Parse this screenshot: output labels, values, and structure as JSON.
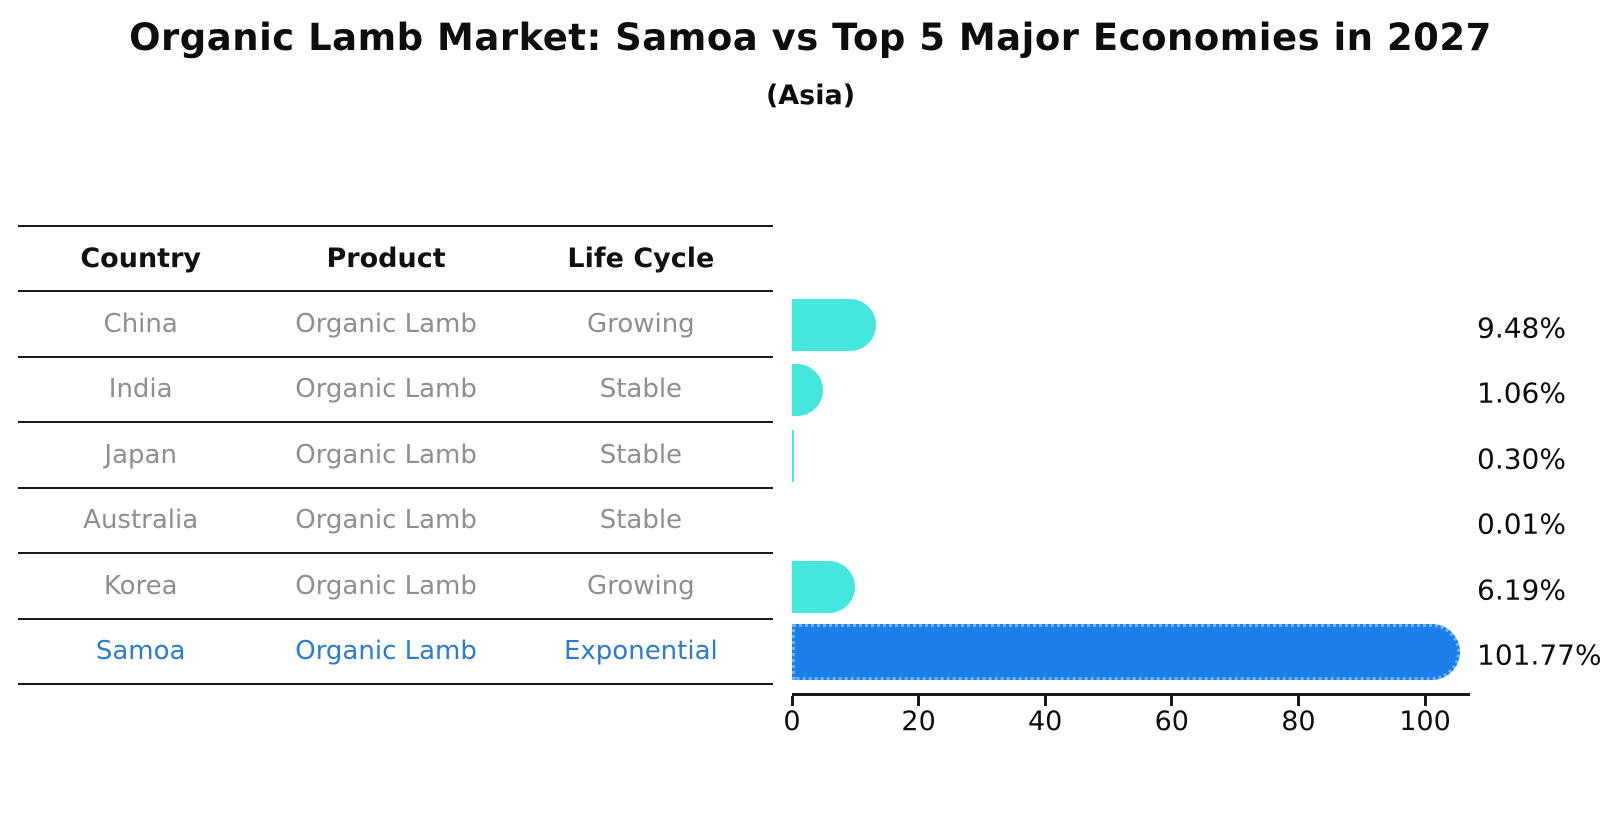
{
  "header": {
    "title": "Organic Lamb Market: Samoa vs Top 5 Major Economies in 2027",
    "subtitle": "(Asia)"
  },
  "table": {
    "columns": [
      "Country",
      "Product",
      "Life Cycle"
    ],
    "rows": [
      {
        "country": "China",
        "product": "Organic Lamb",
        "life_cycle": "Growing",
        "highlight": false
      },
      {
        "country": "India",
        "product": "Organic Lamb",
        "life_cycle": "Stable",
        "highlight": false
      },
      {
        "country": "Japan",
        "product": "Organic Lamb",
        "life_cycle": "Stable",
        "highlight": false
      },
      {
        "country": "Australia",
        "product": "Organic Lamb",
        "life_cycle": "Stable",
        "highlight": false
      },
      {
        "country": "Korea",
        "product": "Organic Lamb",
        "life_cycle": "Growing",
        "highlight": false
      },
      {
        "country": "Samoa",
        "product": "Organic Lamb",
        "life_cycle": "Exponential",
        "highlight": true
      }
    ]
  },
  "chart_data": {
    "type": "bar",
    "orientation": "horizontal",
    "title": "Organic Lamb Market: Samoa vs Top 5 Major Economies in 2027",
    "subtitle": "(Asia)",
    "categories": [
      "China",
      "India",
      "Japan",
      "Australia",
      "Korea",
      "Samoa"
    ],
    "values": [
      9.48,
      1.06,
      0.3,
      0.01,
      6.19,
      101.77
    ],
    "value_labels": [
      "9.48%",
      "1.06%",
      "0.30%",
      "0.01%",
      "6.19%",
      "101.77%"
    ],
    "highlight_category": "Samoa",
    "x_ticks": [
      0,
      20,
      40,
      60,
      80,
      100
    ],
    "xlim": [
      0,
      107
    ],
    "grid": false,
    "legend": "none",
    "colors": {
      "default_bar": "#45e6de",
      "highlight_bar": "#1c7fe8",
      "highlight_text": "#2b7cd3",
      "table_text": "#8f8f8f",
      "axis_text": "#0d0d0d"
    }
  }
}
